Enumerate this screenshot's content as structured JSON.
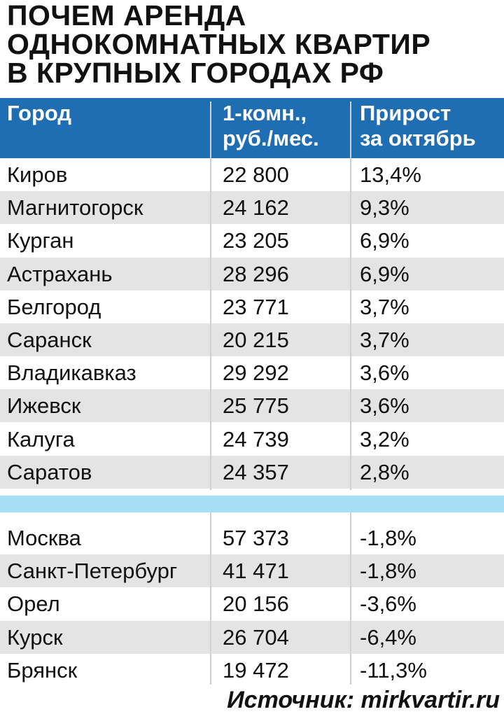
{
  "title": [
    "ПОЧЕМ АРЕНДА",
    "ОДНОКОМНАТНЫХ КВАРТИР",
    "В КРУПНЫХ ГОРОДАХ РФ"
  ],
  "table": {
    "header": [
      [
        "Город"
      ],
      [
        "1-комн.,",
        "руб./мес."
      ],
      [
        "Прирост",
        "за октябрь"
      ]
    ],
    "groups": [
      [
        [
          "Киров",
          "22 800",
          "13,4%"
        ],
        [
          "Магнитогорск",
          "24 162",
          "9,3%"
        ],
        [
          "Курган",
          "23 205",
          "6,9%"
        ],
        [
          "Астрахань",
          "28 296",
          "6,9%"
        ],
        [
          "Белгород",
          "23 771",
          "3,7%"
        ],
        [
          "Саранск",
          "20 215",
          "3,7%"
        ],
        [
          "Владикавказ",
          "29 292",
          "3,6%"
        ],
        [
          "Ижевск",
          "25 775",
          "3,6%"
        ],
        [
          "Калуга",
          "24 739",
          "3,2%"
        ],
        [
          "Саратов",
          "24 357",
          "2,8%"
        ]
      ],
      [
        [
          "Москва",
          "57 373",
          "-1,8%"
        ],
        [
          "Санкт-Петербург",
          "41 471",
          "-1,8%"
        ],
        [
          "Орел",
          "20 156",
          "-3,6%"
        ],
        [
          "Курск",
          "26 704",
          "-6,4%"
        ],
        [
          "Брянск",
          "19 472",
          "-11,3%"
        ]
      ]
    ]
  },
  "source": "Источник: mirkvartir.ru"
}
